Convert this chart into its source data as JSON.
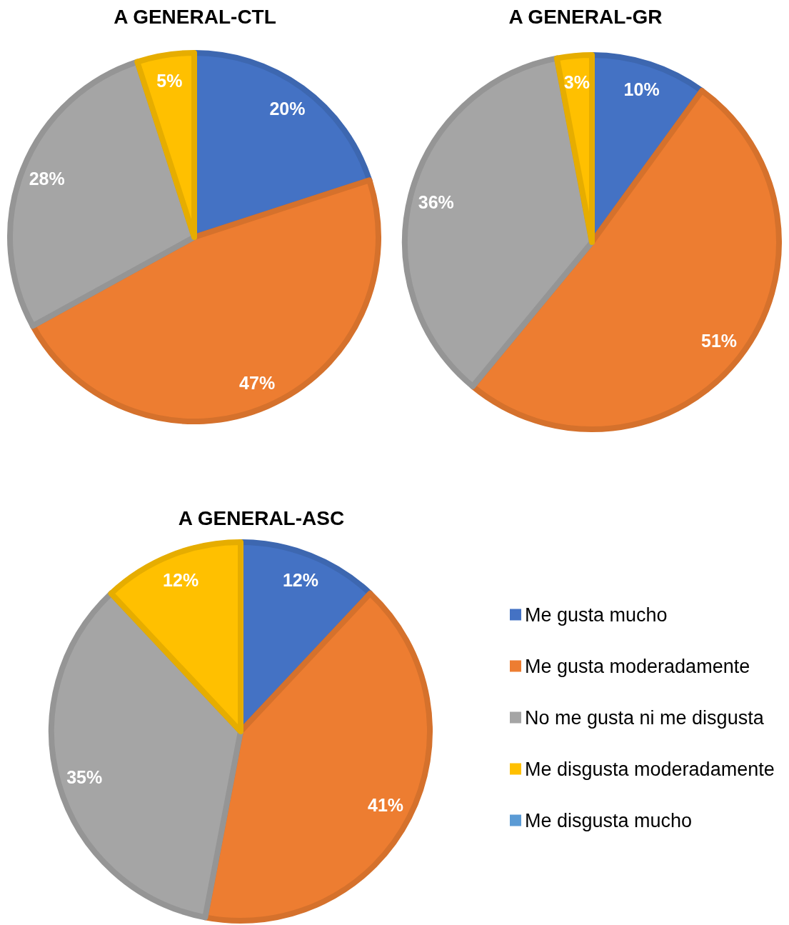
{
  "chart_data": {
    "type": "pie",
    "categories": [
      "Me gusta mucho",
      "Me gusta moderadamente",
      "No me gusta ni me disgusta",
      "Me disgusta moderadamente",
      "Me disgusta mucho"
    ],
    "colors": [
      "#4472c4",
      "#ed7d31",
      "#a5a5a5",
      "#ffc000",
      "#5b9bd5"
    ],
    "legend": "bottom right",
    "series": [
      {
        "name": "A GENERAL-CTL",
        "values": [
          20,
          47,
          28,
          5,
          0
        ],
        "value_labels": [
          "20%",
          "47%",
          "28%",
          "5%",
          null
        ]
      },
      {
        "name": "A GENERAL-GR",
        "values": [
          10,
          51,
          36,
          3,
          0
        ],
        "value_labels": [
          "10%",
          "51%",
          "36%",
          "3%",
          null
        ]
      },
      {
        "name": "A GENERAL-ASC",
        "values": [
          12,
          41,
          35,
          12,
          0
        ],
        "value_labels": [
          "12%",
          "41%",
          "35%",
          "12%",
          null
        ]
      }
    ]
  }
}
